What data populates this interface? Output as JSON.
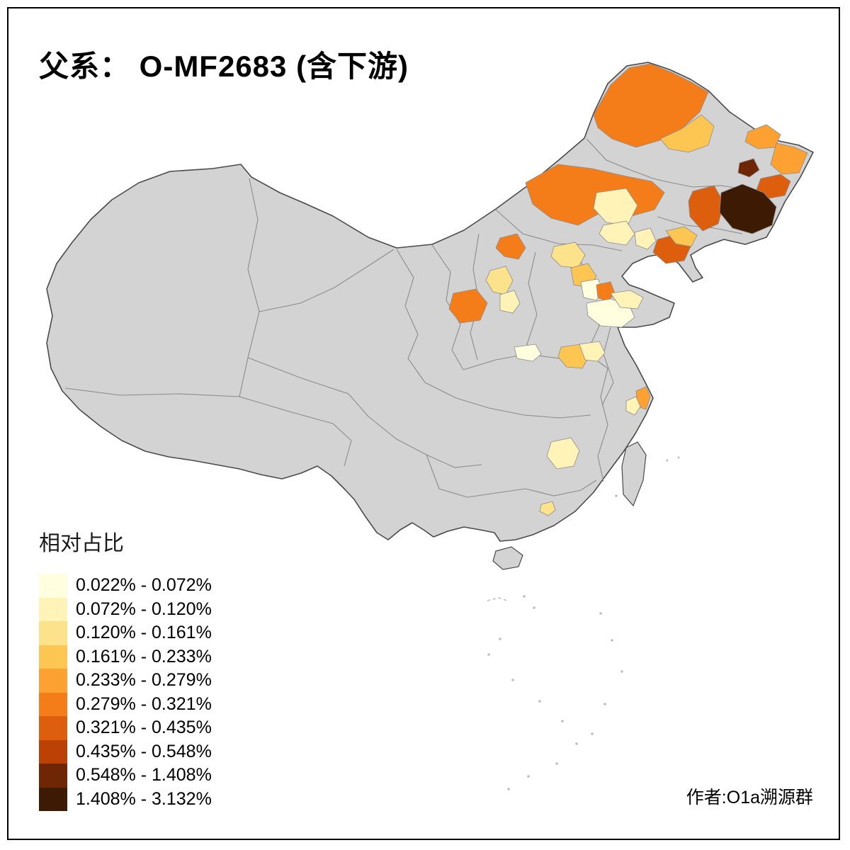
{
  "title": "父系： O-MF2683 (含下游)",
  "legend": {
    "title": "相对占比",
    "classes": [
      {
        "label": "0.022% - 0.072%",
        "color": "#FFFFE0"
      },
      {
        "label": "0.072% - 0.120%",
        "color": "#FFF3B8"
      },
      {
        "label": "0.120% - 0.161%",
        "color": "#FDE28C"
      },
      {
        "label": "0.161% - 0.233%",
        "color": "#FDC653"
      },
      {
        "label": "0.233% - 0.279%",
        "color": "#FDA132"
      },
      {
        "label": "0.279% - 0.321%",
        "color": "#F47D1A"
      },
      {
        "label": "0.321% - 0.435%",
        "color": "#DD5F0D"
      },
      {
        "label": "0.435% - 0.548%",
        "color": "#BC4104"
      },
      {
        "label": "0.548% - 1.408%",
        "color": "#6E2605"
      },
      {
        "label": "1.408% - 3.132%",
        "color": "#3C1A04"
      }
    ]
  },
  "attribution": "作者:O1a溯源群",
  "map": {
    "land_fill": "#D3D3D3",
    "boundary_color": "#4A4A4A",
    "inner_boundary_color": "#8C8C8C",
    "island_fill": "#BDBDBD",
    "frame_color": "#000000",
    "background": "#FFFFFF"
  }
}
